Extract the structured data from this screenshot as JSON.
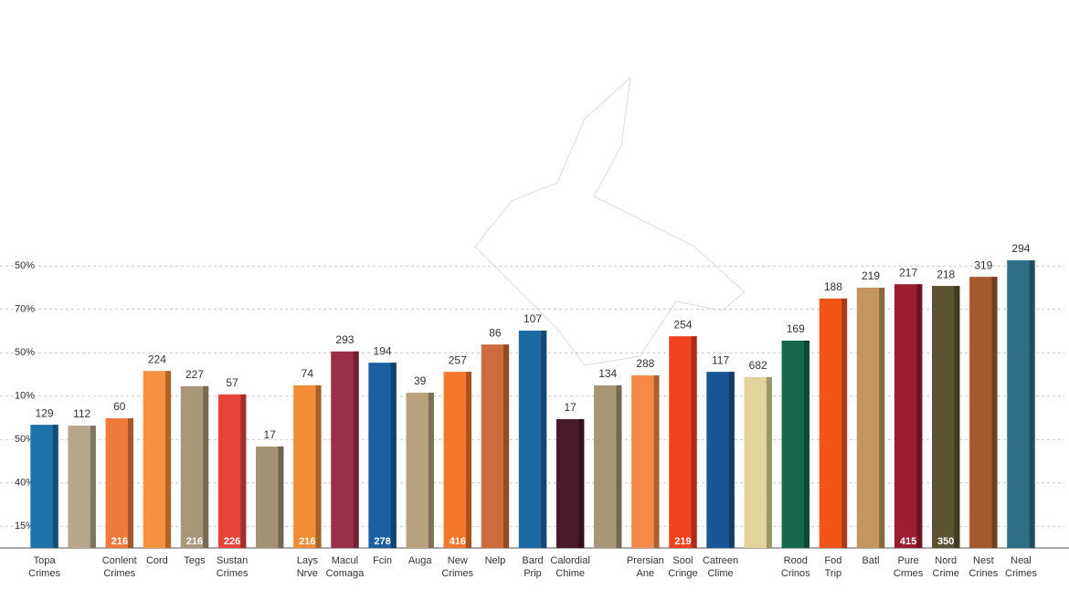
{
  "chart_data": {
    "type": "bar",
    "categories": [
      [
        "Topa",
        "Crimes"
      ],
      null,
      [
        "Conlent",
        "Crimes"
      ],
      [
        "Cord"
      ],
      [
        "Tegs"
      ],
      [
        "Sustan",
        "Crimes"
      ],
      null,
      [
        "Lays",
        "Nrve"
      ],
      [
        "Macul",
        "Comaga"
      ],
      [
        "Fcin"
      ],
      [
        "Auga"
      ],
      [
        "New",
        "Crimes"
      ],
      [
        "Nelp"
      ],
      [
        "Bard",
        "Prip"
      ],
      [
        "Calordial",
        "Chime"
      ],
      null,
      [
        "Prersian",
        "Ane"
      ],
      [
        "Sool",
        "Cringe"
      ],
      [
        "Catreen",
        "Clime"
      ],
      null,
      [
        "Rood",
        "Crinos"
      ],
      [
        "Fod",
        "Trip"
      ],
      [
        "Batl"
      ],
      [
        "Pure",
        "Crmes"
      ],
      [
        "Nord",
        "Crime"
      ],
      [
        "Nest",
        "Crines"
      ],
      [
        "Neal",
        "Crimes"
      ]
    ],
    "values": [
      2.84,
      2.82,
      2.99,
      4.08,
      3.73,
      3.54,
      2.34,
      3.75,
      4.53,
      4.27,
      3.58,
      4.06,
      4.69,
      5.01,
      2.97,
      3.75,
      3.98,
      4.88,
      4.06,
      3.94,
      4.78,
      5.75,
      6.0,
      6.08,
      6.04,
      6.25,
      6.63
    ],
    "top_labels": [
      "129",
      "112",
      "60",
      "224",
      "227",
      "57",
      "17",
      "74",
      "293",
      "194",
      "39",
      "257",
      "86",
      "107",
      "17",
      "134",
      "288",
      "254",
      "117",
      "682",
      "169",
      "188",
      "219",
      "217",
      "218",
      "319",
      "294"
    ],
    "inner_labels": [
      null,
      null,
      "216",
      null,
      "216",
      "226",
      null,
      "216",
      null,
      "278",
      null,
      "416",
      null,
      null,
      null,
      null,
      null,
      "219",
      null,
      null,
      null,
      null,
      null,
      "415",
      "350",
      null,
      null
    ],
    "colors": [
      "#1d72aa",
      "#b6a68c",
      "#f07a3a",
      "#f5913f",
      "#a8977a",
      "#e8443a",
      "#a49274",
      "#f28c35",
      "#9b2f4a",
      "#1a5fa0",
      "#b8a27e",
      "#f4772c",
      "#cf6a3c",
      "#1c6aa3",
      "#4a1a28",
      "#a89676",
      "#f58a4a",
      "#f0421e",
      "#1a5596",
      "#e2d39a",
      "#16684a",
      "#f3541a",
      "#c49560",
      "#9b1e30",
      "#5a5230",
      "#a35a2c",
      "#2e6f88"
    ],
    "ylim": [
      0,
      7
    ],
    "yticks": [
      {
        "value": 0.5,
        "label": "15%"
      },
      {
        "value": 1.5,
        "label": "40%"
      },
      {
        "value": 2.5,
        "label": "50%"
      },
      {
        "value": 3.5,
        "label": "10%"
      },
      {
        "value": 4.5,
        "label": "50%"
      },
      {
        "value": 5.5,
        "label": "70%"
      },
      {
        "value": 6.5,
        "label": "50%"
      }
    ],
    "grid": true
  }
}
